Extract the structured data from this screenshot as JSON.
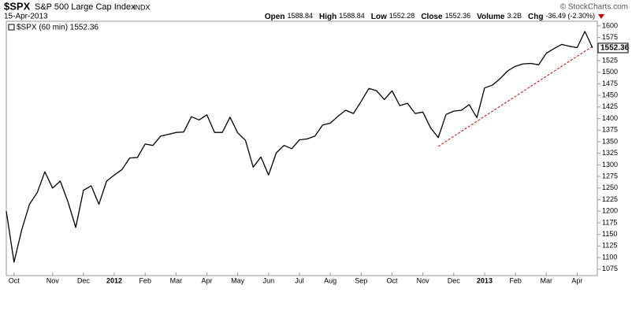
{
  "chart_data": {
    "type": "line",
    "symbol": "$SPX",
    "title": "S&P 500 Large Cap Index",
    "exchange": "INDX",
    "date": "15-Apr-2013",
    "copyright": "© StockCharts.com",
    "quote": [
      {
        "label": "Open",
        "value": 1588.84
      },
      {
        "label": "High",
        "value": 1588.84
      },
      {
        "label": "Low",
        "value": 1552.28
      },
      {
        "label": "Close",
        "value": 1552.36
      },
      {
        "label": "Volume",
        "value": "3.2B"
      },
      {
        "label": "Chg",
        "value": "-36.49 (-2.30%)"
      }
    ],
    "categories": [
      null,
      "Oct",
      null,
      null,
      null,
      null,
      "Nov",
      null,
      null,
      null,
      "Dec",
      null,
      null,
      null,
      "2012",
      null,
      null,
      null,
      "Feb",
      null,
      null,
      null,
      "Mar",
      null,
      null,
      null,
      "Apr",
      null,
      null,
      null,
      "May",
      null,
      null,
      null,
      "Jun",
      null,
      null,
      null,
      "Jul",
      null,
      null,
      null,
      "Aug",
      null,
      null,
      null,
      "Sep",
      null,
      null,
      null,
      "Oct",
      null,
      null,
      null,
      "Nov",
      null,
      null,
      null,
      "Dec",
      null,
      null,
      null,
      "2013",
      null,
      null,
      null,
      "Feb",
      null,
      null,
      null,
      "Mar",
      null,
      null,
      null,
      "Apr",
      null,
      null
    ],
    "series": [
      {
        "name": "$SPX (60 min) 1552.36",
        "color": "#000000",
        "values": [
          1200,
          1090,
          1160,
          1215,
          1240,
          1285,
          1250,
          1265,
          1220,
          1165,
          1245,
          1255,
          1215,
          1265,
          1278,
          1290,
          1315,
          1316,
          1345,
          1342,
          1362,
          1366,
          1370,
          1371,
          1404,
          1397,
          1408,
          1370,
          1370,
          1403,
          1369,
          1353,
          1295,
          1317,
          1278,
          1326,
          1342,
          1335,
          1354,
          1356,
          1362,
          1386,
          1390,
          1405,
          1418,
          1411,
          1437,
          1465,
          1460,
          1441,
          1460,
          1428,
          1433,
          1411,
          1414,
          1380,
          1359,
          1409,
          1416,
          1418,
          1430,
          1402,
          1466,
          1472,
          1486,
          1503,
          1513,
          1518,
          1519,
          1516,
          1541,
          1551,
          1560,
          1556,
          1553,
          1588,
          1552.36
        ]
      }
    ],
    "last_label": "1552.36",
    "trendline": {
      "color": "#cc0000",
      "values": [
        null,
        null,
        null,
        null,
        null,
        null,
        null,
        null,
        null,
        null,
        null,
        null,
        null,
        null,
        null,
        null,
        null,
        null,
        null,
        null,
        null,
        null,
        null,
        null,
        null,
        null,
        null,
        null,
        null,
        null,
        null,
        null,
        null,
        null,
        null,
        null,
        null,
        null,
        null,
        null,
        null,
        null,
        null,
        null,
        null,
        null,
        null,
        null,
        null,
        null,
        null,
        null,
        null,
        null,
        null,
        null,
        1340,
        1350.8,
        1361.6,
        1372.4,
        1383.2,
        1394,
        1404.8,
        1415.6,
        1426.4,
        1437.2,
        1448,
        1458.8,
        1469.6,
        1480.4,
        1491.2,
        1502,
        1512.8,
        1523.6,
        1534.4,
        1545.2,
        1556
      ]
    },
    "ylim": [
      1061,
      1610
    ],
    "yticks": [
      1075,
      1100,
      1125,
      1150,
      1175,
      1200,
      1225,
      1250,
      1275,
      1300,
      1325,
      1350,
      1375,
      1400,
      1425,
      1450,
      1475,
      1500,
      1525,
      1550,
      1575,
      1600
    ],
    "grid": false
  }
}
